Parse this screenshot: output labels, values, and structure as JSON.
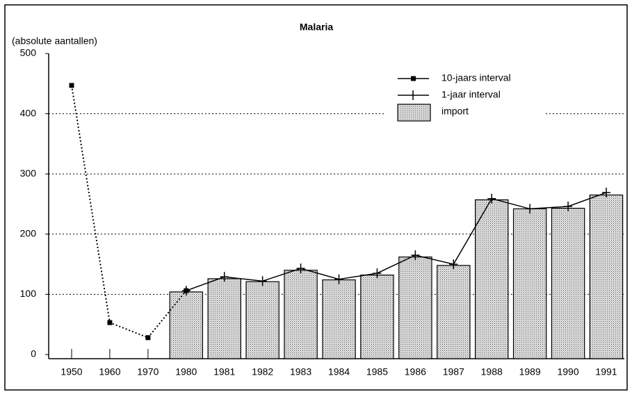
{
  "chart_data": {
    "type": "bar-line",
    "title": "Malaria",
    "y_label": "(absolute aantallen)",
    "categories": [
      "1950",
      "1960",
      "1970",
      "1980",
      "1981",
      "1982",
      "1983",
      "1984",
      "1985",
      "1986",
      "1987",
      "1988",
      "1989",
      "1990",
      "1991"
    ],
    "series": [
      {
        "name": "10-jaars interval",
        "type": "line",
        "marker": "square",
        "dash": "dotted",
        "color": "#000000",
        "values": [
          447,
          53,
          28,
          106,
          null,
          null,
          null,
          null,
          null,
          null,
          null,
          null,
          null,
          null,
          null
        ]
      },
      {
        "name": "1-jaar interval",
        "type": "line",
        "marker": "plus",
        "color": "#000000",
        "values": [
          null,
          null,
          null,
          106,
          129,
          122,
          143,
          125,
          135,
          165,
          150,
          259,
          242,
          246,
          269
        ]
      },
      {
        "name": "import",
        "type": "bar",
        "color": "#bdbdbd",
        "values": [
          null,
          null,
          null,
          104,
          126,
          121,
          140,
          124,
          132,
          162,
          148,
          257,
          242,
          243,
          265
        ]
      }
    ],
    "ylim": [
      0,
      500
    ],
    "yticks": [
      0,
      100,
      200,
      300,
      400,
      500
    ],
    "grid": true,
    "legend": "upper right"
  }
}
